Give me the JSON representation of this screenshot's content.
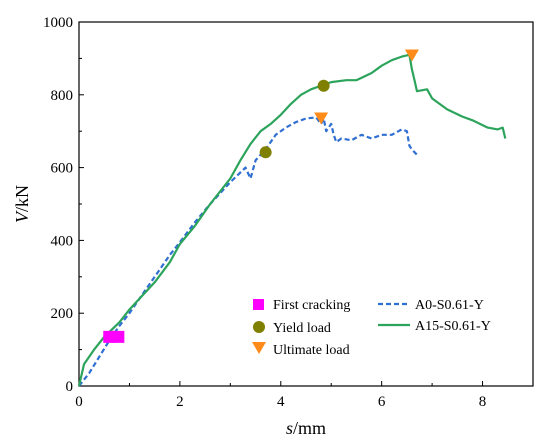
{
  "chart_data": {
    "type": "line",
    "xlabel": {
      "var": "s",
      "unit": "/mm"
    },
    "ylabel": {
      "var": "V",
      "unit": "/kN"
    },
    "xlim": [
      0,
      9
    ],
    "ylim": [
      0,
      1000
    ],
    "xticks": [
      "0",
      "2",
      "4",
      "6",
      "8"
    ],
    "yticks": [
      "0",
      "200",
      "400",
      "600",
      "800",
      "1000"
    ],
    "grid": false,
    "legend_position": "lower-right",
    "series": [
      {
        "name": "A0-S0.61-Y",
        "color": "#2f6fd1",
        "style": "dashed",
        "x": [
          0,
          0.2,
          0.4,
          0.6,
          0.8,
          1.0,
          1.2,
          1.5,
          1.8,
          2.0,
          2.3,
          2.6,
          3.0,
          3.3,
          3.4,
          3.5,
          3.7,
          3.9,
          4.1,
          4.3,
          4.5,
          4.7,
          4.8,
          4.85,
          4.9,
          5.0,
          5.05,
          5.1,
          5.2,
          5.4,
          5.6,
          5.8,
          6.0,
          6.2,
          6.4,
          6.5,
          6.55,
          6.6,
          6.7
        ],
        "y": [
          0,
          35,
          80,
          125,
          165,
          200,
          240,
          300,
          360,
          395,
          450,
          500,
          560,
          600,
          570,
          620,
          650,
          690,
          710,
          725,
          735,
          738,
          720,
          735,
          700,
          720,
          690,
          670,
          680,
          675,
          690,
          680,
          690,
          690,
          705,
          700,
          660,
          650,
          635
        ]
      },
      {
        "name": "A15-S0.61-Y",
        "color": "#2ca45c",
        "style": "solid",
        "x": [
          0,
          0.1,
          0.3,
          0.5,
          0.8,
          1.0,
          1.2,
          1.5,
          1.8,
          2.0,
          2.3,
          2.6,
          3.0,
          3.2,
          3.4,
          3.6,
          3.8,
          4.0,
          4.2,
          4.4,
          4.6,
          4.8,
          5.0,
          5.3,
          5.5,
          5.8,
          6.0,
          6.2,
          6.4,
          6.55,
          6.6,
          6.65,
          6.7,
          6.9,
          7.0,
          7.1,
          7.3,
          7.6,
          7.8,
          8.1,
          8.3,
          8.4,
          8.45
        ],
        "y": [
          0,
          60,
          100,
          135,
          175,
          210,
          240,
          285,
          340,
          390,
          440,
          500,
          570,
          620,
          665,
          700,
          720,
          745,
          775,
          800,
          815,
          825,
          835,
          840,
          840,
          860,
          880,
          895,
          905,
          910,
          870,
          840,
          810,
          815,
          790,
          780,
          760,
          740,
          730,
          710,
          705,
          710,
          680
        ]
      }
    ],
    "markers": [
      {
        "name": "First cracking",
        "shape": "square",
        "color": "#ff00ff",
        "points": [
          [
            0.6,
            135
          ],
          [
            0.78,
            135
          ]
        ]
      },
      {
        "name": "Yield load",
        "shape": "circle",
        "color": "#808000",
        "points": [
          [
            3.7,
            642
          ],
          [
            4.85,
            825
          ]
        ]
      },
      {
        "name": "Ultimate load",
        "shape": "triangle-down",
        "color": "#ff8c1a",
        "points": [
          [
            4.8,
            735
          ],
          [
            6.6,
            908
          ]
        ]
      }
    ]
  }
}
